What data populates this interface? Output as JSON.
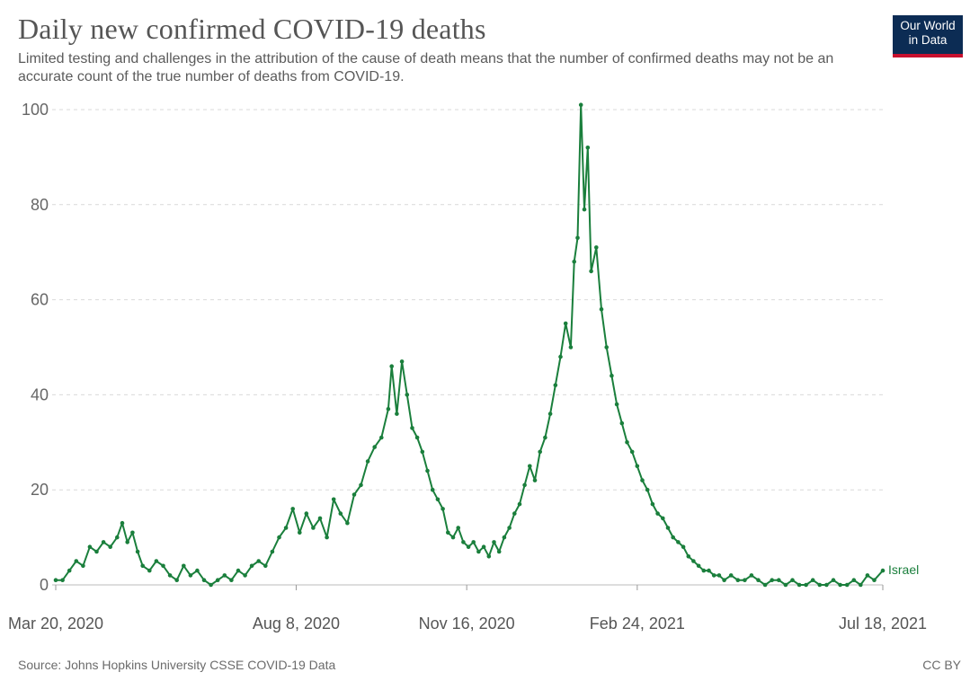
{
  "header": {
    "title": "Daily new confirmed COVID-19 deaths",
    "subtitle": "Limited testing and challenges in the attribution of the cause of death means that the number of confirmed deaths may not be an accurate count of the true number of deaths from COVID-19."
  },
  "logo": {
    "line1": "Our World",
    "line2": "in Data"
  },
  "footer": {
    "source": "Source: Johns Hopkins University CSSE COVID-19 Data",
    "license": "CC BY"
  },
  "colors": {
    "series": "#1a7f3c",
    "grid": "#d9d9d9",
    "logo_bg": "#0c2c54",
    "logo_accent": "#c8102e"
  },
  "chart_data": {
    "type": "line",
    "title": "Daily new confirmed COVID-19 deaths",
    "xlabel": "",
    "ylabel": "",
    "ylim": [
      0,
      100
    ],
    "yticks": [
      0,
      20,
      40,
      60,
      80,
      100
    ],
    "xticks": [
      {
        "date": "2020-03-20",
        "label": "Mar 20, 2020"
      },
      {
        "date": "2020-08-08",
        "label": "Aug 8, 2020"
      },
      {
        "date": "2020-11-16",
        "label": "Nov 16, 2020"
      },
      {
        "date": "2021-02-24",
        "label": "Feb 24, 2021"
      },
      {
        "date": "2021-07-18",
        "label": "Jul 18, 2021"
      }
    ],
    "grid": true,
    "markers": true,
    "series": [
      {
        "name": "Israel",
        "points": [
          [
            "2020-03-20",
            1
          ],
          [
            "2020-03-24",
            1
          ],
          [
            "2020-03-28",
            3
          ],
          [
            "2020-04-01",
            5
          ],
          [
            "2020-04-05",
            4
          ],
          [
            "2020-04-09",
            8
          ],
          [
            "2020-04-13",
            7
          ],
          [
            "2020-04-17",
            9
          ],
          [
            "2020-04-21",
            8
          ],
          [
            "2020-04-25",
            10
          ],
          [
            "2020-04-28",
            13
          ],
          [
            "2020-05-01",
            9
          ],
          [
            "2020-05-04",
            11
          ],
          [
            "2020-05-07",
            7
          ],
          [
            "2020-05-10",
            4
          ],
          [
            "2020-05-14",
            3
          ],
          [
            "2020-05-18",
            5
          ],
          [
            "2020-05-22",
            4
          ],
          [
            "2020-05-26",
            2
          ],
          [
            "2020-05-30",
            1
          ],
          [
            "2020-06-03",
            4
          ],
          [
            "2020-06-07",
            2
          ],
          [
            "2020-06-11",
            3
          ],
          [
            "2020-06-15",
            1
          ],
          [
            "2020-06-19",
            0
          ],
          [
            "2020-06-23",
            1
          ],
          [
            "2020-06-27",
            2
          ],
          [
            "2020-07-01",
            1
          ],
          [
            "2020-07-05",
            3
          ],
          [
            "2020-07-09",
            2
          ],
          [
            "2020-07-13",
            4
          ],
          [
            "2020-07-17",
            5
          ],
          [
            "2020-07-21",
            4
          ],
          [
            "2020-07-25",
            7
          ],
          [
            "2020-07-29",
            10
          ],
          [
            "2020-08-02",
            12
          ],
          [
            "2020-08-06",
            16
          ],
          [
            "2020-08-10",
            11
          ],
          [
            "2020-08-14",
            15
          ],
          [
            "2020-08-18",
            12
          ],
          [
            "2020-08-22",
            14
          ],
          [
            "2020-08-26",
            10
          ],
          [
            "2020-08-30",
            18
          ],
          [
            "2020-09-03",
            15
          ],
          [
            "2020-09-07",
            13
          ],
          [
            "2020-09-11",
            19
          ],
          [
            "2020-09-15",
            21
          ],
          [
            "2020-09-19",
            26
          ],
          [
            "2020-09-23",
            29
          ],
          [
            "2020-09-27",
            31
          ],
          [
            "2020-10-01",
            37
          ],
          [
            "2020-10-03",
            46
          ],
          [
            "2020-10-06",
            36
          ],
          [
            "2020-10-09",
            47
          ],
          [
            "2020-10-12",
            40
          ],
          [
            "2020-10-15",
            33
          ],
          [
            "2020-10-18",
            31
          ],
          [
            "2020-10-21",
            28
          ],
          [
            "2020-10-24",
            24
          ],
          [
            "2020-10-27",
            20
          ],
          [
            "2020-10-30",
            18
          ],
          [
            "2020-11-02",
            16
          ],
          [
            "2020-11-05",
            11
          ],
          [
            "2020-11-08",
            10
          ],
          [
            "2020-11-11",
            12
          ],
          [
            "2020-11-14",
            9
          ],
          [
            "2020-11-17",
            8
          ],
          [
            "2020-11-20",
            9
          ],
          [
            "2020-11-23",
            7
          ],
          [
            "2020-11-26",
            8
          ],
          [
            "2020-11-29",
            6
          ],
          [
            "2020-12-02",
            9
          ],
          [
            "2020-12-05",
            7
          ],
          [
            "2020-12-08",
            10
          ],
          [
            "2020-12-11",
            12
          ],
          [
            "2020-12-14",
            15
          ],
          [
            "2020-12-17",
            17
          ],
          [
            "2020-12-20",
            21
          ],
          [
            "2020-12-23",
            25
          ],
          [
            "2020-12-26",
            22
          ],
          [
            "2020-12-29",
            28
          ],
          [
            "2021-01-01",
            31
          ],
          [
            "2021-01-04",
            36
          ],
          [
            "2021-01-07",
            42
          ],
          [
            "2021-01-10",
            48
          ],
          [
            "2021-01-13",
            55
          ],
          [
            "2021-01-16",
            50
          ],
          [
            "2021-01-18",
            68
          ],
          [
            "2021-01-20",
            73
          ],
          [
            "2021-01-22",
            101
          ],
          [
            "2021-01-24",
            79
          ],
          [
            "2021-01-26",
            92
          ],
          [
            "2021-01-28",
            66
          ],
          [
            "2021-01-31",
            71
          ],
          [
            "2021-02-03",
            58
          ],
          [
            "2021-02-06",
            50
          ],
          [
            "2021-02-09",
            44
          ],
          [
            "2021-02-12",
            38
          ],
          [
            "2021-02-15",
            34
          ],
          [
            "2021-02-18",
            30
          ],
          [
            "2021-02-21",
            28
          ],
          [
            "2021-02-24",
            25
          ],
          [
            "2021-02-27",
            22
          ],
          [
            "2021-03-02",
            20
          ],
          [
            "2021-03-05",
            17
          ],
          [
            "2021-03-08",
            15
          ],
          [
            "2021-03-11",
            14
          ],
          [
            "2021-03-14",
            12
          ],
          [
            "2021-03-17",
            10
          ],
          [
            "2021-03-20",
            9
          ],
          [
            "2021-03-23",
            8
          ],
          [
            "2021-03-26",
            6
          ],
          [
            "2021-03-29",
            5
          ],
          [
            "2021-04-01",
            4
          ],
          [
            "2021-04-04",
            3
          ],
          [
            "2021-04-07",
            3
          ],
          [
            "2021-04-10",
            2
          ],
          [
            "2021-04-13",
            2
          ],
          [
            "2021-04-16",
            1
          ],
          [
            "2021-04-20",
            2
          ],
          [
            "2021-04-24",
            1
          ],
          [
            "2021-04-28",
            1
          ],
          [
            "2021-05-02",
            2
          ],
          [
            "2021-05-06",
            1
          ],
          [
            "2021-05-10",
            0
          ],
          [
            "2021-05-14",
            1
          ],
          [
            "2021-05-18",
            1
          ],
          [
            "2021-05-22",
            0
          ],
          [
            "2021-05-26",
            1
          ],
          [
            "2021-05-30",
            0
          ],
          [
            "2021-06-03",
            0
          ],
          [
            "2021-06-07",
            1
          ],
          [
            "2021-06-11",
            0
          ],
          [
            "2021-06-15",
            0
          ],
          [
            "2021-06-19",
            1
          ],
          [
            "2021-06-23",
            0
          ],
          [
            "2021-06-27",
            0
          ],
          [
            "2021-07-01",
            1
          ],
          [
            "2021-07-05",
            0
          ],
          [
            "2021-07-09",
            2
          ],
          [
            "2021-07-13",
            1
          ],
          [
            "2021-07-18",
            3
          ]
        ]
      }
    ]
  }
}
